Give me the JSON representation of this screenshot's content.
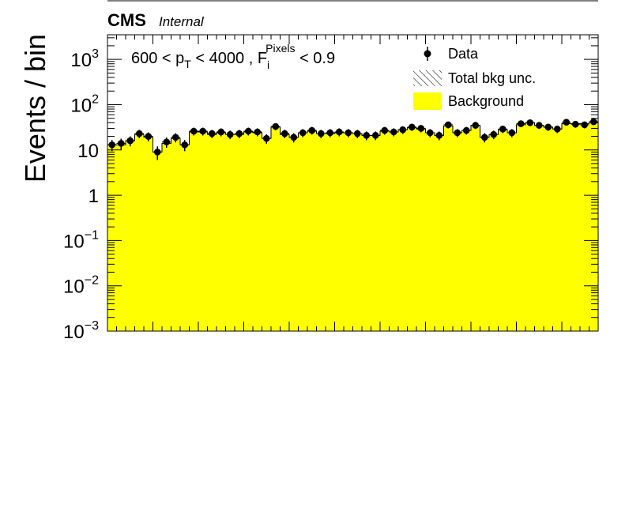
{
  "header": {
    "experiment": "CMS",
    "status": "Internal"
  },
  "colors": {
    "background_fill": "#ffff00",
    "data_marker": "#000000",
    "frame": "#000000"
  },
  "chart_data": {
    "type": "bar",
    "subtype": "stacked-histogram-with-data-points",
    "ylabel": "Events / bin",
    "xlabel": "",
    "yscale": "log",
    "ylim": [
      0.001,
      3500
    ],
    "y_tick_labels": [
      "10^-3",
      "10^-2",
      "10^-1",
      "1",
      "10",
      "10^2",
      "10^3"
    ],
    "x_tick_labels": [],
    "grid": false,
    "legend_position": "top-right",
    "annotation": "600 < p_T < 4000 , F_i^Pixels < 0.9",
    "legend": [
      {
        "label": "Data",
        "style": "marker"
      },
      {
        "label": "Total bkg unc.",
        "style": "hatch"
      },
      {
        "label": "Background",
        "style": "fill"
      }
    ],
    "n_bins": 54,
    "series": [
      {
        "name": "Background",
        "values": [
          13,
          13,
          16,
          22,
          19,
          9,
          14,
          18,
          13,
          25,
          25,
          22,
          24,
          22,
          22,
          25,
          24,
          18,
          32,
          22,
          19,
          24,
          26,
          23,
          23,
          24,
          24,
          23,
          21,
          21,
          26,
          25,
          28,
          31,
          29,
          24,
          21,
          34,
          24,
          27,
          35,
          19,
          22,
          28,
          24,
          36,
          40,
          35,
          32,
          29,
          38,
          38,
          38,
          42
        ]
      },
      {
        "name": "Data",
        "values": [
          13,
          14,
          16,
          23,
          20,
          9,
          15,
          19,
          13,
          26,
          26,
          23,
          25,
          22,
          23,
          26,
          25,
          18,
          33,
          23,
          19,
          24,
          27,
          23,
          24,
          25,
          24,
          23,
          21,
          21,
          27,
          25,
          28,
          32,
          30,
          24,
          21,
          36,
          24,
          27,
          35,
          19,
          22,
          29,
          24,
          38,
          40,
          35,
          32,
          29,
          41,
          37,
          36,
          42
        ]
      }
    ]
  }
}
